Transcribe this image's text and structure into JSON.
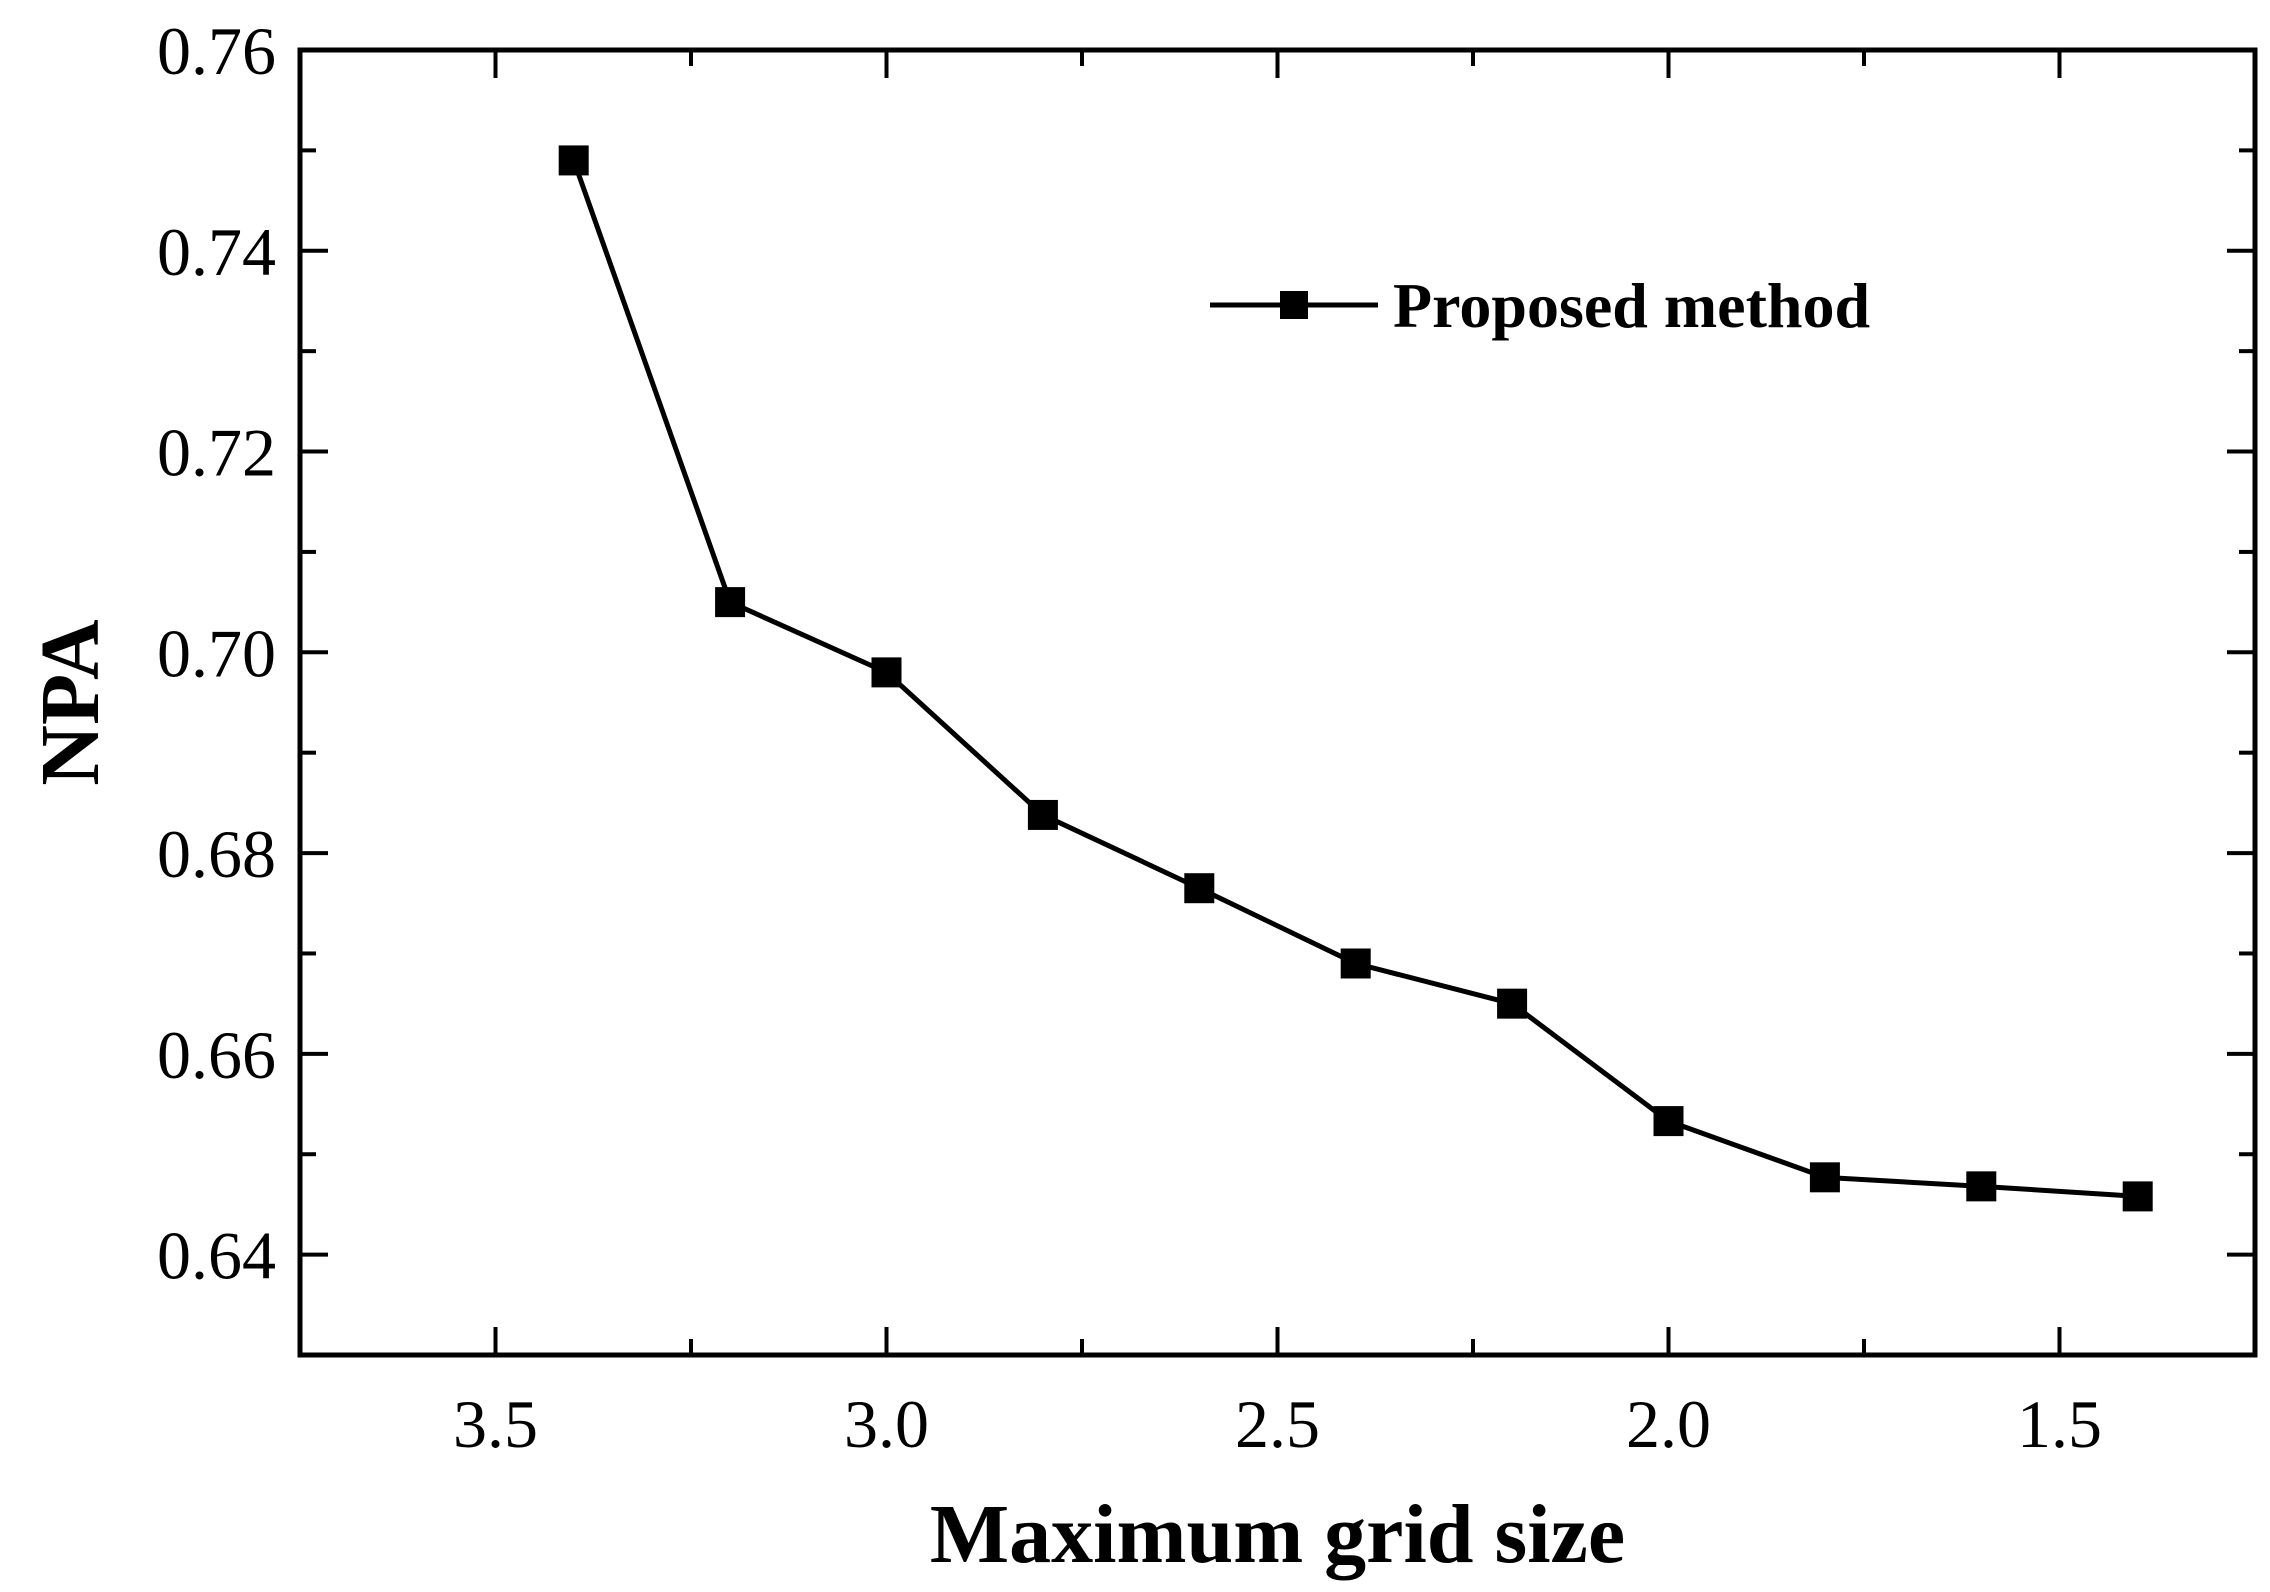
{
  "chart_data": {
    "type": "line",
    "title": "",
    "xlabel": "Maximum grid size",
    "ylabel": "NPA",
    "x_reversed": true,
    "xlim": [
      3.75,
      1.25
    ],
    "ylim": [
      0.63,
      0.76
    ],
    "x_ticks": [
      3.5,
      3.0,
      2.5,
      2.0,
      1.5
    ],
    "x_tick_labels": [
      "3.5",
      "3.0",
      "2.5",
      "2.0",
      "1.5"
    ],
    "y_ticks": [
      0.64,
      0.66,
      0.68,
      0.7,
      0.72,
      0.74,
      0.76
    ],
    "y_tick_labels": [
      "0.64",
      "0.66",
      "0.68",
      "0.70",
      "0.72",
      "0.74",
      "0.76"
    ],
    "grid": false,
    "legend_position": "top-right",
    "series": [
      {
        "name": "Proposed method",
        "marker": "square",
        "color": "#000000",
        "x": [
          3.4,
          3.2,
          3.0,
          2.8,
          2.6,
          2.4,
          2.2,
          2.0,
          1.8,
          1.6,
          1.4
        ],
        "y": [
          0.749,
          0.705,
          0.698,
          0.6838,
          0.6765,
          0.669,
          0.665,
          0.6533,
          0.6477,
          0.6468,
          0.6458
        ]
      }
    ]
  }
}
